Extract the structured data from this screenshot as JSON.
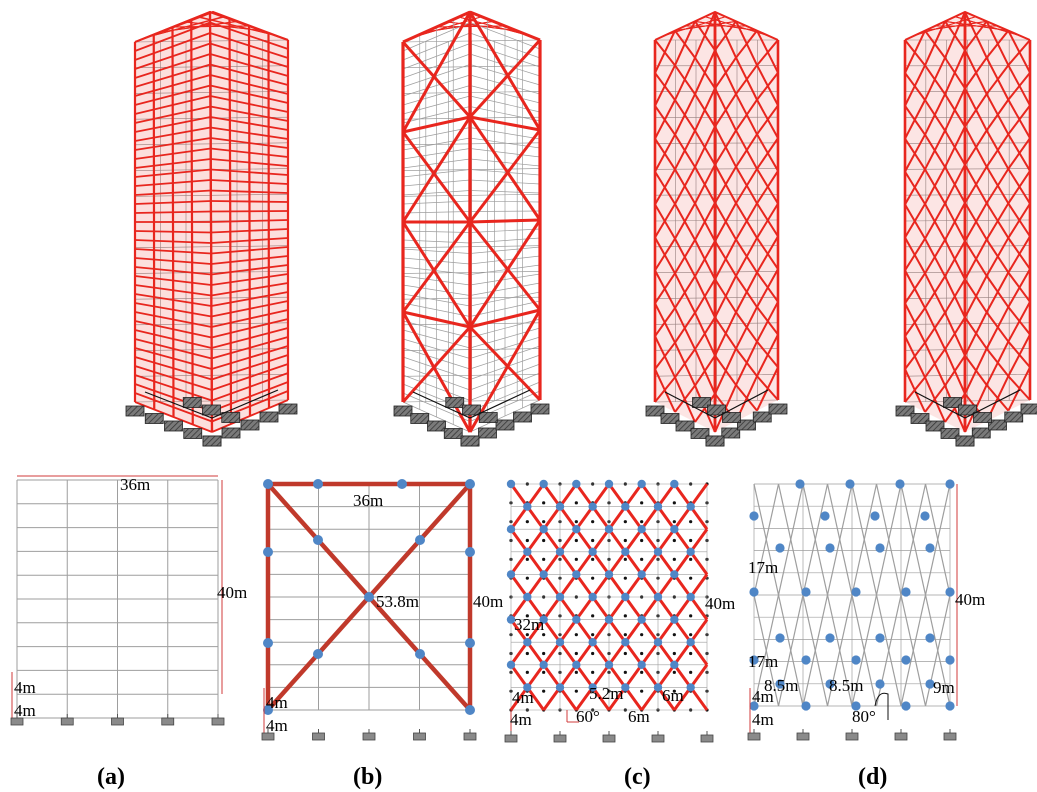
{
  "figure": {
    "captions": [
      "(a)",
      "(b)",
      "(c)",
      "(d)"
    ],
    "colors": {
      "member_red": "#e8261e",
      "brace_red": "#c0392b",
      "node_blue": "#4f86c6",
      "grid_gray": "#9e9e9e",
      "core_gray": "#8c8c8c",
      "dim_red": "#d23b3b",
      "support_gray": "#5a5a5a"
    }
  },
  "panel_a": {
    "width_label": "36m",
    "height_label": "40m",
    "storey_label": "4m",
    "base_label": "4m"
  },
  "panel_b": {
    "width_label": "36m",
    "height_label": "40m",
    "diagonal_label": "53.8m",
    "storey_label": "4m",
    "base_label": "4m"
  },
  "panel_c": {
    "height_label": "40m",
    "module_label": "32m",
    "spacing_label": "5.2m",
    "bay_label_1": "6m",
    "bay_label_2": "6m",
    "angle_label": "60°",
    "storey_label": "4m",
    "base_label": "4m"
  },
  "panel_d": {
    "height_label": "40m",
    "module_label_upper": "17m",
    "module_label_lower": "17m",
    "spacing_label_1": "8.5m",
    "spacing_label_2": "8.5m",
    "bay_label": "9m",
    "angle_label": "80°",
    "storey_label": "4m",
    "base_label": "4m"
  }
}
